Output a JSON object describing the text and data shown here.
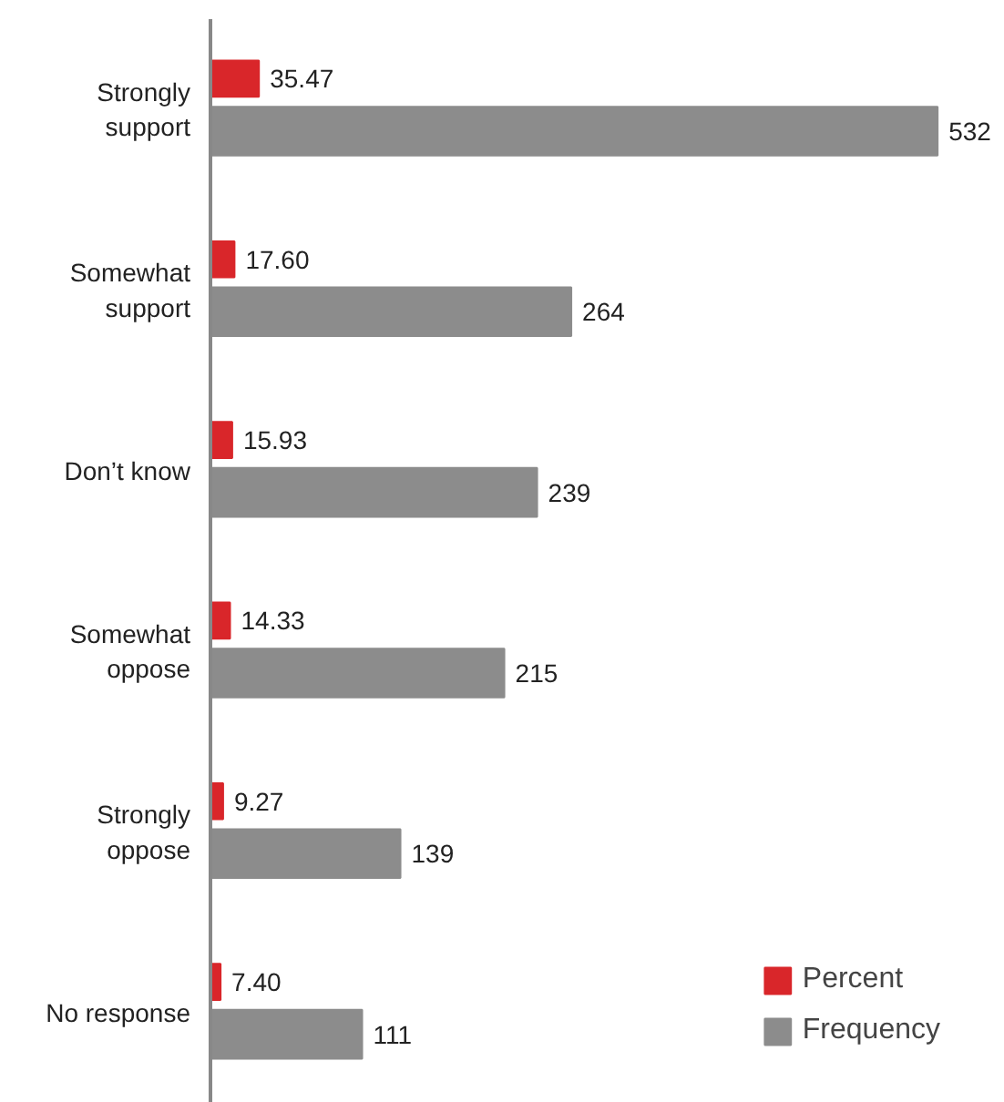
{
  "chart_data": {
    "type": "bar",
    "orientation": "horizontal",
    "categories": [
      "Strongly support",
      "Somewhat support",
      "Don’t know",
      "Somewhat oppose",
      "Strongly oppose",
      "No response"
    ],
    "series": [
      {
        "name": "Percent",
        "color": "#d9262a",
        "values": [
          35.47,
          17.6,
          15.93,
          14.33,
          9.27,
          7.4
        ],
        "value_labels": [
          "35.47",
          "17.60",
          "15.93",
          "14.33",
          "9.27",
          "7.40"
        ]
      },
      {
        "name": "Frequency",
        "color": "#8c8c8c",
        "values": [
          532,
          264,
          239,
          215,
          139,
          111
        ],
        "value_labels": [
          "532",
          "264",
          "239",
          "215",
          "139",
          "111"
        ]
      }
    ],
    "grid": false,
    "legend": "bottom right",
    "tick_labels": "y"
  }
}
